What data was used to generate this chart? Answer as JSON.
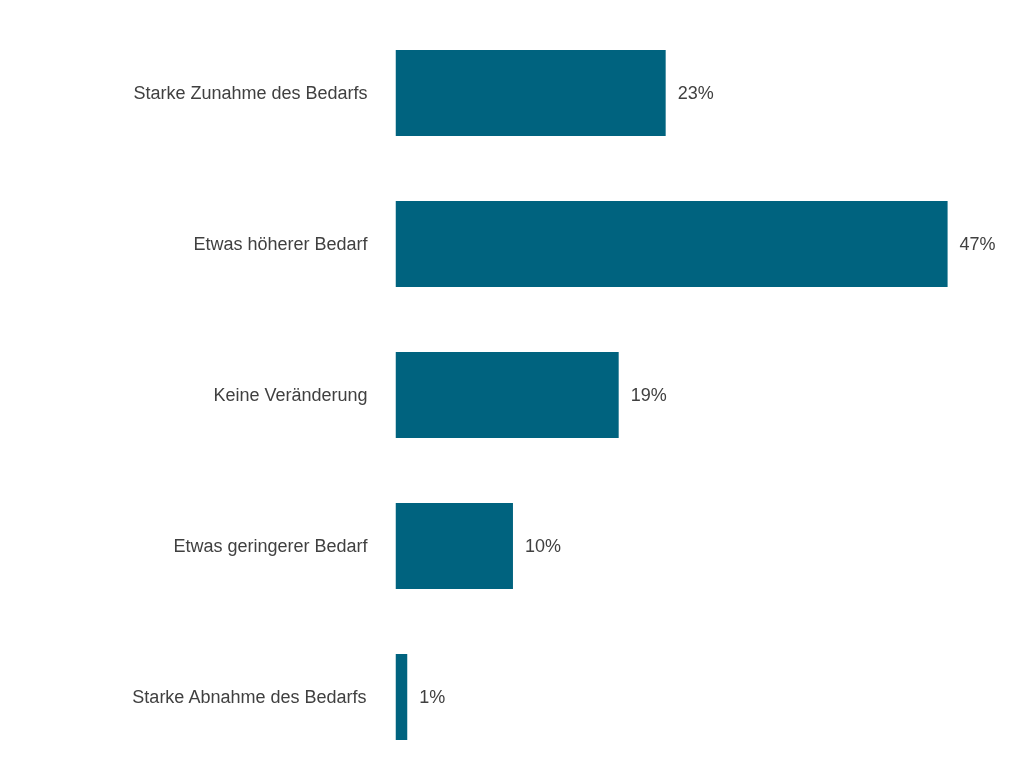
{
  "chart_data": {
    "type": "bar",
    "orientation": "horizontal",
    "categories": [
      "Starke Zunahme des Bedarfs",
      "Etwas höherer Bedarf",
      "Keine Veränderung",
      "Etwas geringerer Bedarf",
      "Starke Abnahme des Bedarfs"
    ],
    "values": [
      23,
      47,
      19,
      10,
      1
    ],
    "value_labels": [
      "23%",
      "47%",
      "19%",
      "10%",
      "1%"
    ],
    "color": "#00637f",
    "grid": false
  }
}
